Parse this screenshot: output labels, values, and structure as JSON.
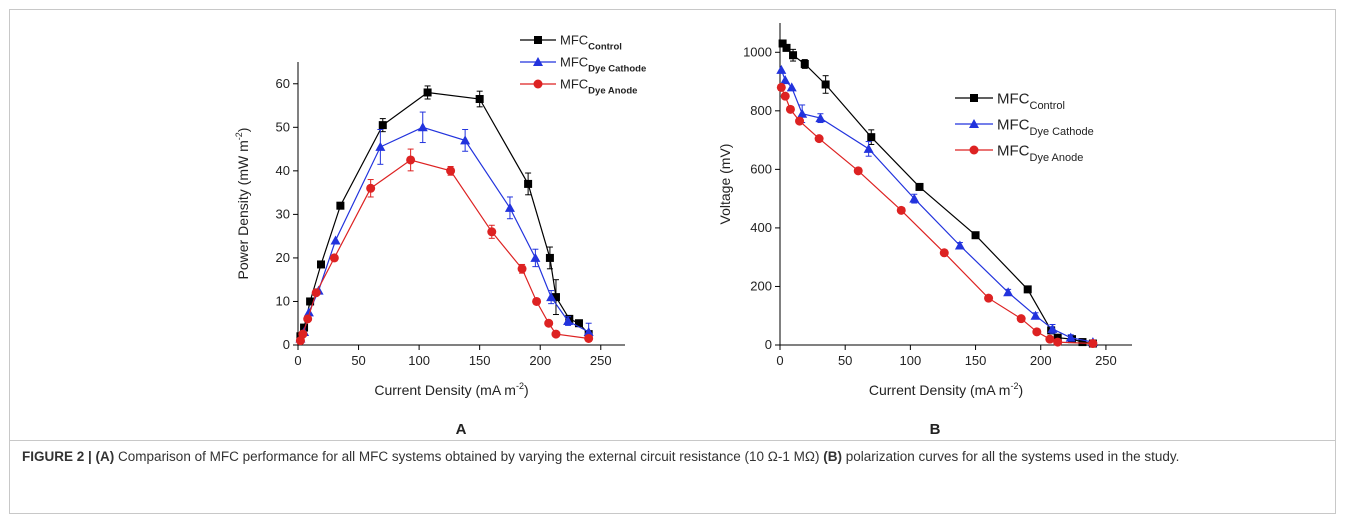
{
  "chart_data": [
    {
      "type": "line",
      "panel_label": "A",
      "xlabel": "Current Density (mA m",
      "xlabel_sup": "-2",
      "xlabel_end": ")",
      "ylabel": "Power Density (mW m",
      "ylabel_sup": "-2",
      "ylabel_end": ")",
      "xlim": [
        0,
        270
      ],
      "ylim": [
        0,
        65
      ],
      "xticks": [
        "0",
        "50",
        "100",
        "150",
        "200",
        "250"
      ],
      "yticks": [
        "0",
        "10",
        "20",
        "30",
        "40",
        "50",
        "60"
      ],
      "legend_position": "top-right",
      "series": [
        {
          "base": "MFC",
          "sub": "Control",
          "color": "#000000",
          "marker": "square",
          "x": [
            2,
            5,
            10,
            19,
            35,
            70,
            107,
            150,
            190,
            208,
            213,
            224,
            232,
            240
          ],
          "y": [
            2,
            4,
            10,
            18.5,
            32,
            50.5,
            58,
            56.5,
            37,
            20,
            11,
            6,
            5,
            2.5
          ],
          "err": [
            0,
            0,
            0,
            0,
            0,
            1.5,
            1.5,
            1.8,
            2.5,
            2.5,
            4,
            0,
            0,
            0
          ]
        },
        {
          "base": "MFC",
          "sub": "Dye Cathode",
          "color": "#2233dd",
          "marker": "triangle",
          "x": [
            2,
            5,
            9,
            17,
            31,
            68,
            103,
            138,
            175,
            196,
            209,
            223,
            240
          ],
          "y": [
            1.5,
            3,
            7.5,
            12.5,
            24,
            45.5,
            50,
            47,
            31.5,
            20,
            11,
            5.5,
            3
          ],
          "err": [
            0,
            0,
            0,
            0,
            0,
            4,
            3.5,
            2.5,
            2.5,
            2,
            1.5,
            1,
            2
          ]
        },
        {
          "base": "MFC",
          "sub": "Dye Anode",
          "color": "#dd2222",
          "marker": "circle",
          "x": [
            2,
            4,
            8,
            15,
            30,
            60,
            93,
            126,
            160,
            185,
            197,
            207,
            213,
            240
          ],
          "y": [
            1,
            2.5,
            6,
            12,
            20,
            36,
            42.5,
            40,
            26,
            17.5,
            10,
            5,
            2.5,
            1.5
          ],
          "err": [
            0,
            0,
            0,
            0,
            0,
            2,
            2.5,
            1,
            1.5,
            1,
            0,
            0,
            0,
            0
          ]
        }
      ]
    },
    {
      "type": "line",
      "panel_label": "B",
      "xlabel": "Current Density (mA m",
      "xlabel_sup": "-2",
      "xlabel_end": ")",
      "ylabel": "Voltage (mV)",
      "ylabel_sup": "",
      "ylabel_end": "",
      "xlim": [
        0,
        270
      ],
      "ylim": [
        0,
        1100
      ],
      "xticks": [
        "0",
        "50",
        "100",
        "150",
        "200",
        "250"
      ],
      "yticks": [
        "0",
        "200",
        "400",
        "600",
        "800",
        "1000"
      ],
      "legend_position": "top-right",
      "series": [
        {
          "base": "MFC",
          "sub": "Control",
          "color": "#000000",
          "marker": "square",
          "x": [
            2,
            5,
            10,
            19,
            35,
            70,
            107,
            150,
            190,
            208,
            213,
            224,
            232,
            240
          ],
          "y": [
            1030,
            1015,
            990,
            960,
            890,
            710,
            540,
            375,
            190,
            50,
            25,
            20,
            10,
            5
          ],
          "err": [
            0,
            0,
            20,
            15,
            30,
            25,
            10,
            10,
            10,
            10,
            0,
            0,
            0,
            0
          ]
        },
        {
          "base": "MFC",
          "sub": "Dye Cathode",
          "color": "#2233dd",
          "marker": "triangle",
          "x": [
            1,
            4,
            9,
            17,
            31,
            68,
            103,
            138,
            175,
            196,
            209,
            223,
            240
          ],
          "y": [
            940,
            905,
            880,
            790,
            775,
            670,
            500,
            340,
            180,
            100,
            55,
            25,
            10
          ],
          "err": [
            0,
            0,
            0,
            30,
            15,
            25,
            15,
            10,
            10,
            10,
            15,
            10,
            0
          ]
        },
        {
          "base": "MFC",
          "sub": "Dye Anode",
          "color": "#dd2222",
          "marker": "circle",
          "x": [
            1,
            4,
            8,
            15,
            30,
            60,
            93,
            126,
            160,
            185,
            197,
            207,
            213,
            240
          ],
          "y": [
            880,
            850,
            805,
            765,
            705,
            595,
            460,
            315,
            160,
            90,
            45,
            20,
            10,
            5
          ],
          "err": [
            0,
            0,
            0,
            0,
            0,
            0,
            0,
            0,
            0,
            0,
            0,
            0,
            0,
            0
          ]
        }
      ]
    }
  ],
  "caption": {
    "label": "FIGURE 2 | ",
    "panel_a": "(A)",
    "text_a": " Comparison of MFC performance for all MFC systems obtained by varying the external circuit resistance (10 Ω-1 MΩ) ",
    "panel_b": "(B)",
    "text_b": " polarization curves for all the systems used in the study."
  }
}
